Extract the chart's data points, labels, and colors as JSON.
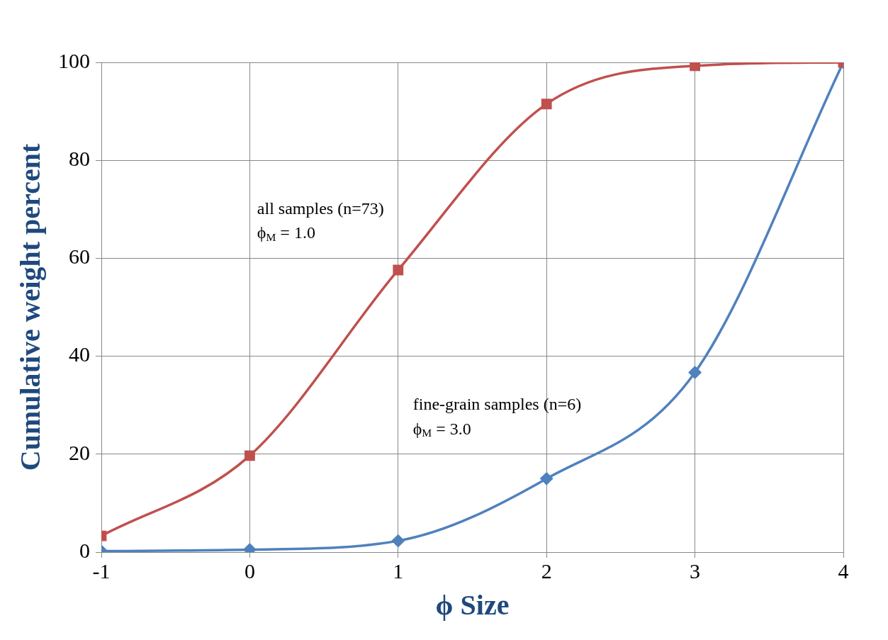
{
  "chart_data": {
    "type": "line",
    "xlabel": "ϕ Size",
    "ylabel": "Cumulative weight percent",
    "x": [
      -1,
      0,
      1,
      2,
      3,
      4
    ],
    "xlim": [
      -1,
      4
    ],
    "xticks": [
      -1,
      0,
      1,
      2,
      3,
      4
    ],
    "ylim": [
      0,
      100
    ],
    "yticks": [
      0,
      20,
      40,
      60,
      80,
      100
    ],
    "grid": true,
    "legend": false,
    "line_style": "solid",
    "series": [
      {
        "color": "#c0504d",
        "marker": "square",
        "values": [
          3.3,
          19.7,
          57.6,
          91.5,
          99.3,
          100
        ]
      },
      {
        "color": "#4f81bd",
        "marker": "diamond",
        "values": [
          0.2,
          0.5,
          2.3,
          15,
          36.7,
          100
        ]
      }
    ],
    "annotations": [
      "all samples (n=73)",
      "ϕ$_{M}$ = 1.0",
      "fine-grain samples (n=6)",
      "ϕ$_{M}$ = 3.0"
    ]
  }
}
